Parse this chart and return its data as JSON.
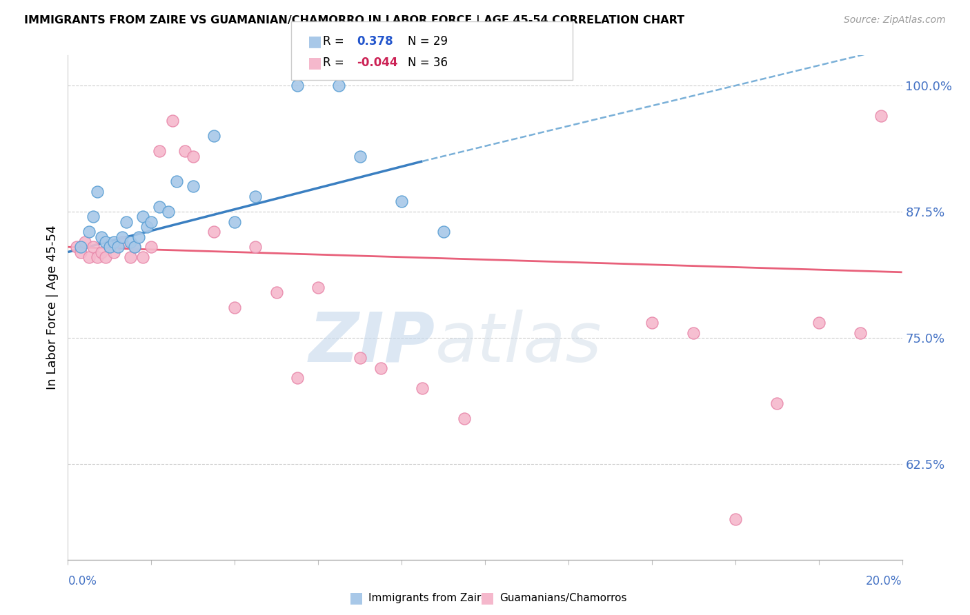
{
  "title": "IMMIGRANTS FROM ZAIRE VS GUAMANIAN/CHAMORRO IN LABOR FORCE | AGE 45-54 CORRELATION CHART",
  "source": "Source: ZipAtlas.com",
  "ylabel": "In Labor Force | Age 45-54",
  "right_yticks": [
    62.5,
    75.0,
    87.5,
    100.0
  ],
  "right_ytick_labels": [
    "62.5%",
    "75.0%",
    "87.5%",
    "100.0%"
  ],
  "xmin": 0.0,
  "xmax": 20.0,
  "ymin": 53.0,
  "ymax": 103.0,
  "blue_r": "0.378",
  "blue_n": "29",
  "pink_r": "-0.044",
  "pink_n": "36",
  "blue_color": "#a8c8e8",
  "blue_edge_color": "#5a9fd4",
  "pink_color": "#f5b8cc",
  "pink_edge_color": "#e888aa",
  "blue_line_color": "#3a7fc1",
  "pink_line_color": "#e8607a",
  "dashed_line_color": "#7ab0d8",
  "watermark_zip": "ZIP",
  "watermark_atlas": "atlas",
  "legend_label_blue": "Immigrants from Zaire",
  "legend_label_pink": "Guamanians/Chamorros",
  "blue_points_x": [
    0.3,
    0.5,
    0.6,
    0.7,
    0.8,
    0.9,
    1.0,
    1.1,
    1.2,
    1.3,
    1.4,
    1.5,
    1.6,
    1.7,
    1.8,
    1.9,
    2.0,
    2.2,
    2.4,
    2.6,
    3.0,
    3.5,
    4.0,
    4.5,
    5.5,
    6.5,
    7.0,
    8.0,
    9.0
  ],
  "blue_points_y": [
    84.0,
    85.5,
    87.0,
    89.5,
    85.0,
    84.5,
    84.0,
    84.5,
    84.0,
    85.0,
    86.5,
    84.5,
    84.0,
    85.0,
    87.0,
    86.0,
    86.5,
    88.0,
    87.5,
    90.5,
    90.0,
    95.0,
    86.5,
    89.0,
    100.0,
    100.0,
    93.0,
    88.5,
    85.5
  ],
  "pink_points_x": [
    0.2,
    0.3,
    0.4,
    0.5,
    0.6,
    0.7,
    0.8,
    0.9,
    1.0,
    1.1,
    1.3,
    1.5,
    1.6,
    1.8,
    2.0,
    2.2,
    2.5,
    2.8,
    3.0,
    3.5,
    4.0,
    4.5,
    5.0,
    5.5,
    6.0,
    7.0,
    7.5,
    8.5,
    9.5,
    14.0,
    15.0,
    16.0,
    17.0,
    18.0,
    19.0,
    19.5
  ],
  "pink_points_y": [
    84.0,
    83.5,
    84.5,
    83.0,
    84.0,
    83.0,
    83.5,
    83.0,
    84.0,
    83.5,
    84.5,
    83.0,
    84.0,
    83.0,
    84.0,
    93.5,
    96.5,
    93.5,
    93.0,
    85.5,
    78.0,
    84.0,
    79.5,
    71.0,
    80.0,
    73.0,
    72.0,
    70.0,
    67.0,
    76.5,
    75.5,
    57.0,
    68.5,
    76.5,
    75.5,
    97.0
  ],
  "blue_line_x0": 0.0,
  "blue_line_x1": 8.5,
  "blue_line_y0": 83.5,
  "blue_line_y1": 92.5,
  "blue_dash_x0": 8.5,
  "blue_dash_x1": 20.0,
  "blue_dash_y0": 92.5,
  "blue_dash_y1": 104.0,
  "pink_line_x0": 0.0,
  "pink_line_x1": 20.0,
  "pink_line_y0": 84.0,
  "pink_line_y1": 81.5
}
